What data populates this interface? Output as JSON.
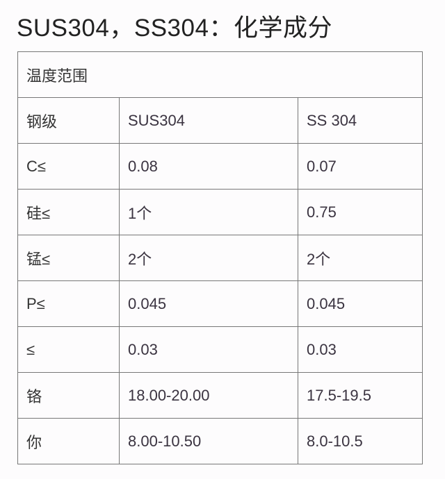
{
  "title": "SUS304，SS304：化学成分",
  "table": {
    "header": "温度范围",
    "rows": [
      [
        "钢级",
        "SUS304",
        "SS 304"
      ],
      [
        "C≤",
        "0.08",
        "0.07"
      ],
      [
        "硅≤",
        "1个",
        "0.75"
      ],
      [
        "锰≤",
        "2个",
        "2个"
      ],
      [
        "P≤",
        "0.045",
        "0.045"
      ],
      [
        "≤",
        "0.03",
        "0.03"
      ],
      [
        "铬",
        "18.00-20.00",
        "17.5-19.5"
      ],
      [
        "你",
        "8.00-10.50",
        "8.0-10.5"
      ]
    ]
  }
}
